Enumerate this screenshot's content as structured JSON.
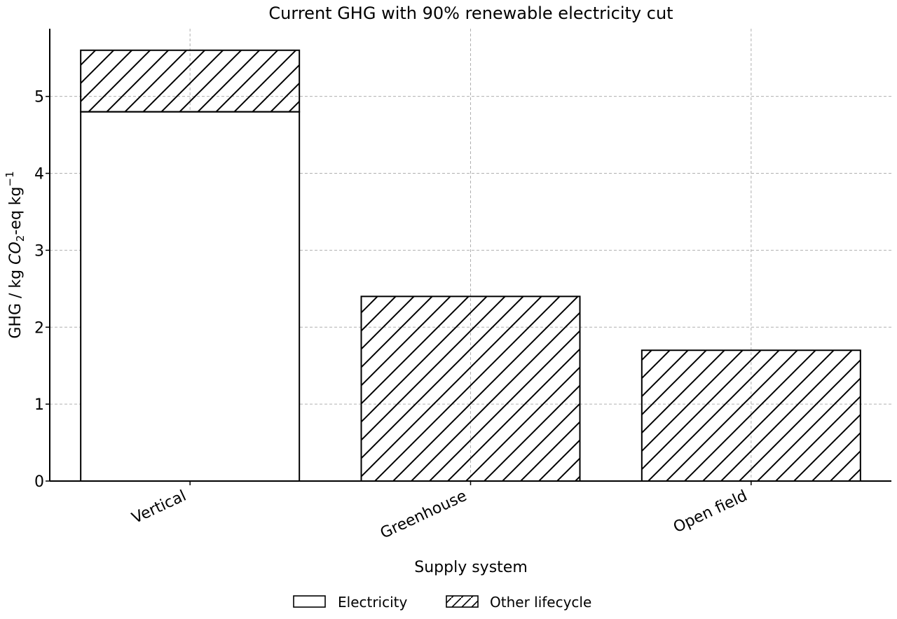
{
  "chart_data": {
    "type": "bar",
    "stacked": true,
    "title": "Current GHG with 90% renewable electricity cut",
    "xlabel": "Supply system",
    "ylabel": {
      "prefix": "GHG / kg ",
      "chem_main": "CO",
      "chem_sub": "2",
      "mid": "-eq kg",
      "sup": "−1"
    },
    "categories": [
      "Vertical",
      "Greenhouse",
      "Open field"
    ],
    "series": [
      {
        "name": "Electricity",
        "values": [
          4.8,
          0,
          0
        ],
        "fill": "none-hatch"
      },
      {
        "name": "Other lifecycle",
        "values": [
          0.8,
          2.4,
          1.7
        ],
        "fill": "diagonal-hatch"
      }
    ],
    "ylim": [
      0,
      5.88
    ],
    "yticks": [
      "0",
      "1",
      "2",
      "3",
      "4",
      "5"
    ],
    "grid": true,
    "legend_placement": "bottom-center",
    "colors": {
      "edge": "#000000",
      "face": "#ffffff",
      "grid": "#b0b0b0"
    }
  }
}
